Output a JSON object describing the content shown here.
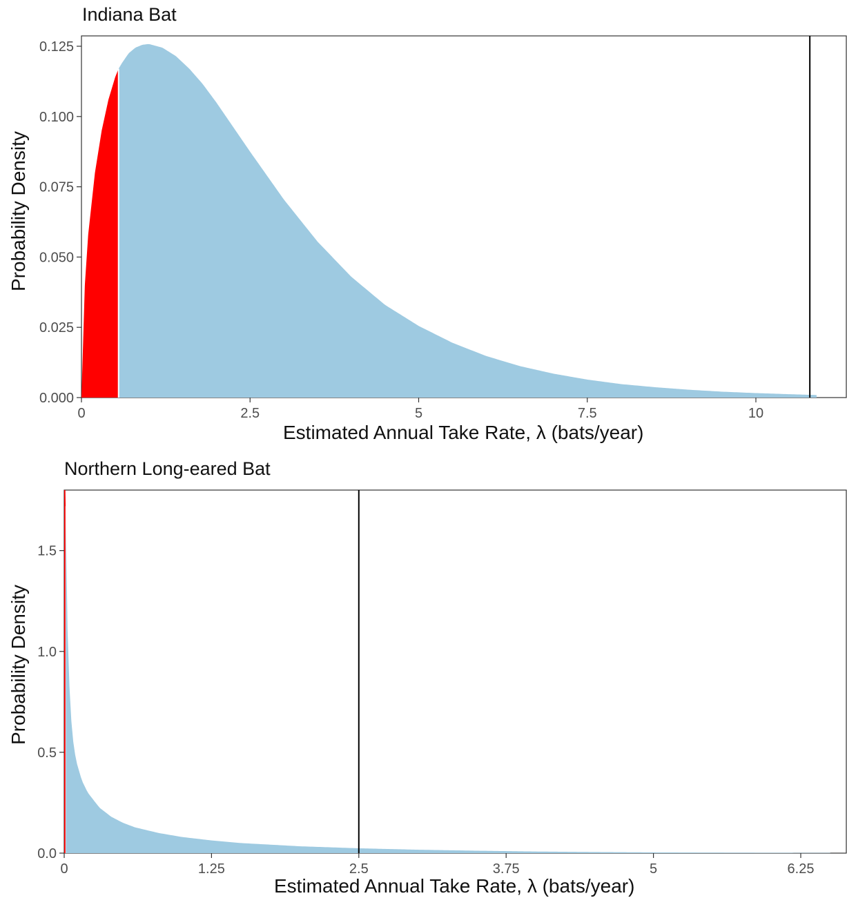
{
  "chart_data": [
    {
      "type": "area",
      "title": "Indiana Bat",
      "xlabel": "Estimated Annual Take Rate, λ (bats/year)",
      "ylabel": "Probability Density",
      "xlim": [
        0,
        11.2
      ],
      "ylim": [
        0,
        0.125
      ],
      "x_ticks": [
        "0",
        "2.5",
        "5",
        "7.5",
        "10"
      ],
      "y_ticks": [
        "0.000",
        "0.025",
        "0.050",
        "0.075",
        "0.100",
        "0.125"
      ],
      "grid": false,
      "legend": "none",
      "density_curve": {
        "x": [
          0,
          0.05,
          0.1,
          0.2,
          0.3,
          0.4,
          0.5,
          0.55,
          0.6,
          0.7,
          0.8,
          0.9,
          1.0,
          1.2,
          1.4,
          1.6,
          1.8,
          2.0,
          2.5,
          3.0,
          3.5,
          4.0,
          4.5,
          5.0,
          5.5,
          6.0,
          6.5,
          7.0,
          7.5,
          8.0,
          8.5,
          9.0,
          9.5,
          10.0,
          10.5,
          10.9
        ],
        "y": [
          0.0,
          0.04,
          0.058,
          0.08,
          0.095,
          0.106,
          0.114,
          0.117,
          0.119,
          0.1225,
          0.1245,
          0.1255,
          0.1258,
          0.1245,
          0.1215,
          0.117,
          0.1115,
          0.105,
          0.0875,
          0.0705,
          0.0555,
          0.043,
          0.033,
          0.0255,
          0.0195,
          0.0148,
          0.0112,
          0.0085,
          0.0064,
          0.0048,
          0.0037,
          0.0028,
          0.0021,
          0.0016,
          0.0012,
          0.0009
        ]
      },
      "lower_shaded_x_max": 0.55,
      "vertical_line_x": 10.8,
      "colors": {
        "fill": "#9ecae1",
        "lower": "#ff0000",
        "line": "#000000"
      }
    },
    {
      "type": "area",
      "title": "Northern Long-eared Bat",
      "xlabel": "Estimated Annual Take Rate, λ (bats/year)",
      "ylabel": "Probability Density",
      "xlim": [
        0,
        6.5
      ],
      "ylim": [
        0,
        1.8
      ],
      "x_ticks": [
        "0",
        "1.25",
        "2.5",
        "3.75",
        "5",
        "6.25"
      ],
      "y_ticks": [
        "0.0",
        "0.5",
        "1.0",
        "1.5"
      ],
      "grid": false,
      "legend": "none",
      "density_curve": {
        "x": [
          0.0,
          0.01,
          0.02,
          0.03,
          0.05,
          0.07,
          0.1,
          0.15,
          0.2,
          0.3,
          0.4,
          0.5,
          0.6,
          0.8,
          1.0,
          1.25,
          1.5,
          2.0,
          2.5,
          3.0,
          3.5,
          4.0,
          4.5,
          5.0,
          5.5,
          6.0,
          6.5
        ],
        "y": [
          1.8,
          1.8,
          1.4,
          1.05,
          0.74,
          0.58,
          0.46,
          0.36,
          0.3,
          0.225,
          0.18,
          0.15,
          0.128,
          0.1,
          0.08,
          0.063,
          0.05,
          0.034,
          0.024,
          0.017,
          0.012,
          0.008,
          0.0055,
          0.0037,
          0.0025,
          0.0017,
          0.0011
        ]
      },
      "lower_shaded_x_max": 0.012,
      "vertical_line_x": 2.5,
      "colors": {
        "fill": "#9ecae1",
        "lower": "#ff0000",
        "line": "#000000"
      }
    }
  ]
}
